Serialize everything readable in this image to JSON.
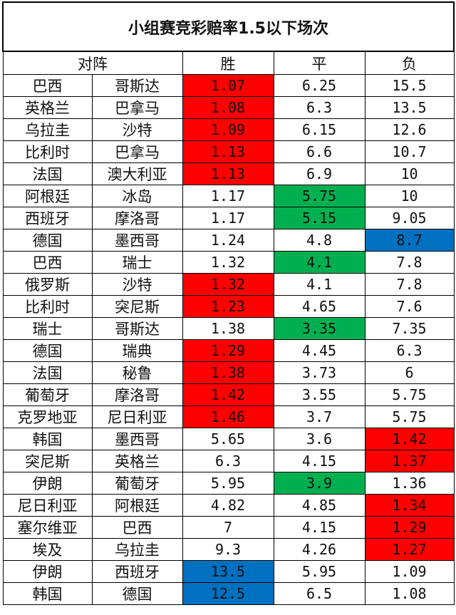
{
  "title": "小组赛竞彩赔率1.5以下场次",
  "headers": {
    "matchup": "对阵",
    "win": "胜",
    "draw": "平",
    "loss": "负"
  },
  "highlight_colors": {
    "red": "#ff0000",
    "green": "#00b050",
    "blue": "#0070c0"
  },
  "rows": [
    {
      "home": "巴西",
      "away": "哥斯达",
      "win": "1.07",
      "draw": "6.25",
      "loss": "15.5",
      "win_fill": "red",
      "draw_fill": "",
      "loss_fill": ""
    },
    {
      "home": "英格兰",
      "away": "巴拿马",
      "win": "1.08",
      "draw": "6.3",
      "loss": "13.5",
      "win_fill": "red",
      "draw_fill": "",
      "loss_fill": ""
    },
    {
      "home": "乌拉圭",
      "away": "沙特",
      "win": "1.09",
      "draw": "6.15",
      "loss": "12.6",
      "win_fill": "red",
      "draw_fill": "",
      "loss_fill": ""
    },
    {
      "home": "比利时",
      "away": "巴拿马",
      "win": "1.13",
      "draw": "6.6",
      "loss": "10.7",
      "win_fill": "red",
      "draw_fill": "",
      "loss_fill": ""
    },
    {
      "home": "法国",
      "away": "澳大利亚",
      "win": "1.13",
      "draw": "6.9",
      "loss": "10",
      "win_fill": "red",
      "draw_fill": "",
      "loss_fill": ""
    },
    {
      "home": "阿根廷",
      "away": "冰岛",
      "win": "1.17",
      "draw": "5.75",
      "loss": "10",
      "win_fill": "",
      "draw_fill": "green",
      "loss_fill": ""
    },
    {
      "home": "西班牙",
      "away": "摩洛哥",
      "win": "1.17",
      "draw": "5.15",
      "loss": "9.05",
      "win_fill": "",
      "draw_fill": "green",
      "loss_fill": ""
    },
    {
      "home": "德国",
      "away": "墨西哥",
      "win": "1.24",
      "draw": "4.8",
      "loss": "8.7",
      "win_fill": "",
      "draw_fill": "",
      "loss_fill": "blue"
    },
    {
      "home": "巴西",
      "away": "瑞士",
      "win": "1.32",
      "draw": "4.1",
      "loss": "7.8",
      "win_fill": "",
      "draw_fill": "green",
      "loss_fill": ""
    },
    {
      "home": "俄罗斯",
      "away": "沙特",
      "win": "1.32",
      "draw": "4.1",
      "loss": "7.8",
      "win_fill": "red",
      "draw_fill": "",
      "loss_fill": ""
    },
    {
      "home": "比利时",
      "away": "突尼斯",
      "win": "1.23",
      "draw": "4.65",
      "loss": "7.6",
      "win_fill": "red",
      "draw_fill": "",
      "loss_fill": ""
    },
    {
      "home": "瑞士",
      "away": "哥斯达",
      "win": "1.38",
      "draw": "3.35",
      "loss": "7.35",
      "win_fill": "",
      "draw_fill": "green",
      "loss_fill": ""
    },
    {
      "home": "德国",
      "away": "瑞典",
      "win": "1.29",
      "draw": "4.45",
      "loss": "6.3",
      "win_fill": "red",
      "draw_fill": "",
      "loss_fill": ""
    },
    {
      "home": "法国",
      "away": "秘鲁",
      "win": "1.38",
      "draw": "3.73",
      "loss": "6",
      "win_fill": "red",
      "draw_fill": "",
      "loss_fill": ""
    },
    {
      "home": "葡萄牙",
      "away": "摩洛哥",
      "win": "1.42",
      "draw": "3.55",
      "loss": "5.75",
      "win_fill": "red",
      "draw_fill": "",
      "loss_fill": ""
    },
    {
      "home": "克罗地亚",
      "away": "尼日利亚",
      "win": "1.46",
      "draw": "3.7",
      "loss": "5.75",
      "win_fill": "red",
      "draw_fill": "",
      "loss_fill": ""
    },
    {
      "home": "韩国",
      "away": "墨西哥",
      "win": "5.65",
      "draw": "3.6",
      "loss": "1.42",
      "win_fill": "",
      "draw_fill": "",
      "loss_fill": "red"
    },
    {
      "home": "突尼斯",
      "away": "英格兰",
      "win": "6.3",
      "draw": "4.15",
      "loss": "1.37",
      "win_fill": "",
      "draw_fill": "",
      "loss_fill": "red"
    },
    {
      "home": "伊朗",
      "away": "葡萄牙",
      "win": "5.95",
      "draw": "3.9",
      "loss": "1.36",
      "win_fill": "",
      "draw_fill": "green",
      "loss_fill": ""
    },
    {
      "home": "尼日利亚",
      "away": "阿根廷",
      "win": "4.82",
      "draw": "4.85",
      "loss": "1.34",
      "win_fill": "",
      "draw_fill": "",
      "loss_fill": "red"
    },
    {
      "home": "塞尔维亚",
      "away": "巴西",
      "win": "7",
      "draw": "4.15",
      "loss": "1.29",
      "win_fill": "",
      "draw_fill": "",
      "loss_fill": "red"
    },
    {
      "home": "埃及",
      "away": "乌拉圭",
      "win": "9.3",
      "draw": "4.26",
      "loss": "1.27",
      "win_fill": "",
      "draw_fill": "",
      "loss_fill": "red"
    },
    {
      "home": "伊朗",
      "away": "西班牙",
      "win": "13.5",
      "draw": "5.95",
      "loss": "1.09",
      "win_fill": "blue",
      "draw_fill": "",
      "loss_fill": ""
    },
    {
      "home": "韩国",
      "away": "德国",
      "win": "12.5",
      "draw": "6.5",
      "loss": "1.08",
      "win_fill": "blue",
      "draw_fill": "",
      "loss_fill": ""
    }
  ]
}
